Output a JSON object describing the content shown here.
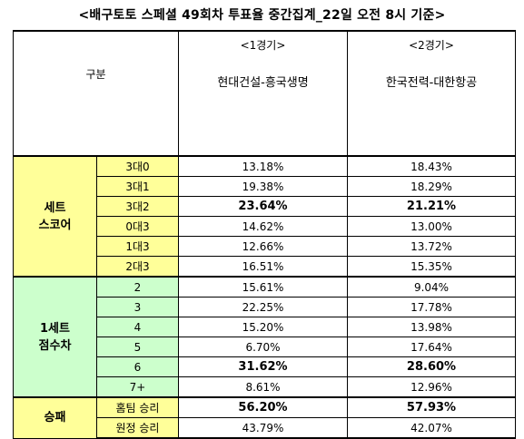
{
  "title": "<배구토토 스페셜 49회차 투표율 중간집계_22일 오전 8시 기준>",
  "header": {
    "gubun": "구분",
    "games": [
      {
        "number": "<1경기>",
        "teams": "현대건설-흥국생명"
      },
      {
        "number": "<2경기>",
        "teams": "한국전력-대한항공"
      }
    ]
  },
  "sections": [
    {
      "category": "세트\n스코어",
      "bg": "#ffff99",
      "rows": [
        {
          "label": "3대0",
          "g1": "13.18%",
          "g2": "18.43%",
          "bold": false
        },
        {
          "label": "3대1",
          "g1": "19.38%",
          "g2": "18.29%",
          "bold": false
        },
        {
          "label": "3대2",
          "g1": "23.64%",
          "g2": "21.21%",
          "bold": true
        },
        {
          "label": "0대3",
          "g1": "14.62%",
          "g2": "13.00%",
          "bold": false
        },
        {
          "label": "1대3",
          "g1": "12.66%",
          "g2": "13.72%",
          "bold": false
        },
        {
          "label": "2대3",
          "g1": "16.51%",
          "g2": "15.35%",
          "bold": false
        }
      ]
    },
    {
      "category": "1세트\n점수차",
      "bg": "#ccffcc",
      "rows": [
        {
          "label": "2",
          "g1": "15.61%",
          "g2": "9.04%",
          "bold": false
        },
        {
          "label": "3",
          "g1": "22.25%",
          "g2": "17.78%",
          "bold": false
        },
        {
          "label": "4",
          "g1": "15.20%",
          "g2": "13.98%",
          "bold": false
        },
        {
          "label": "5",
          "g1": "6.70%",
          "g2": "17.64%",
          "bold": false
        },
        {
          "label": "6",
          "g1": "31.62%",
          "g2": "28.60%",
          "bold": true
        },
        {
          "label": "7+",
          "g1": "8.61%",
          "g2": "12.96%",
          "bold": false
        }
      ]
    },
    {
      "category": "승패",
      "bg": "#ffff99",
      "rows": [
        {
          "label": "홈팀 승리",
          "g1": "56.20%",
          "g2": "57.93%",
          "bold": true
        },
        {
          "label": "원정 승리",
          "g1": "43.79%",
          "g2": "42.07%",
          "bold": false
        }
      ]
    }
  ]
}
